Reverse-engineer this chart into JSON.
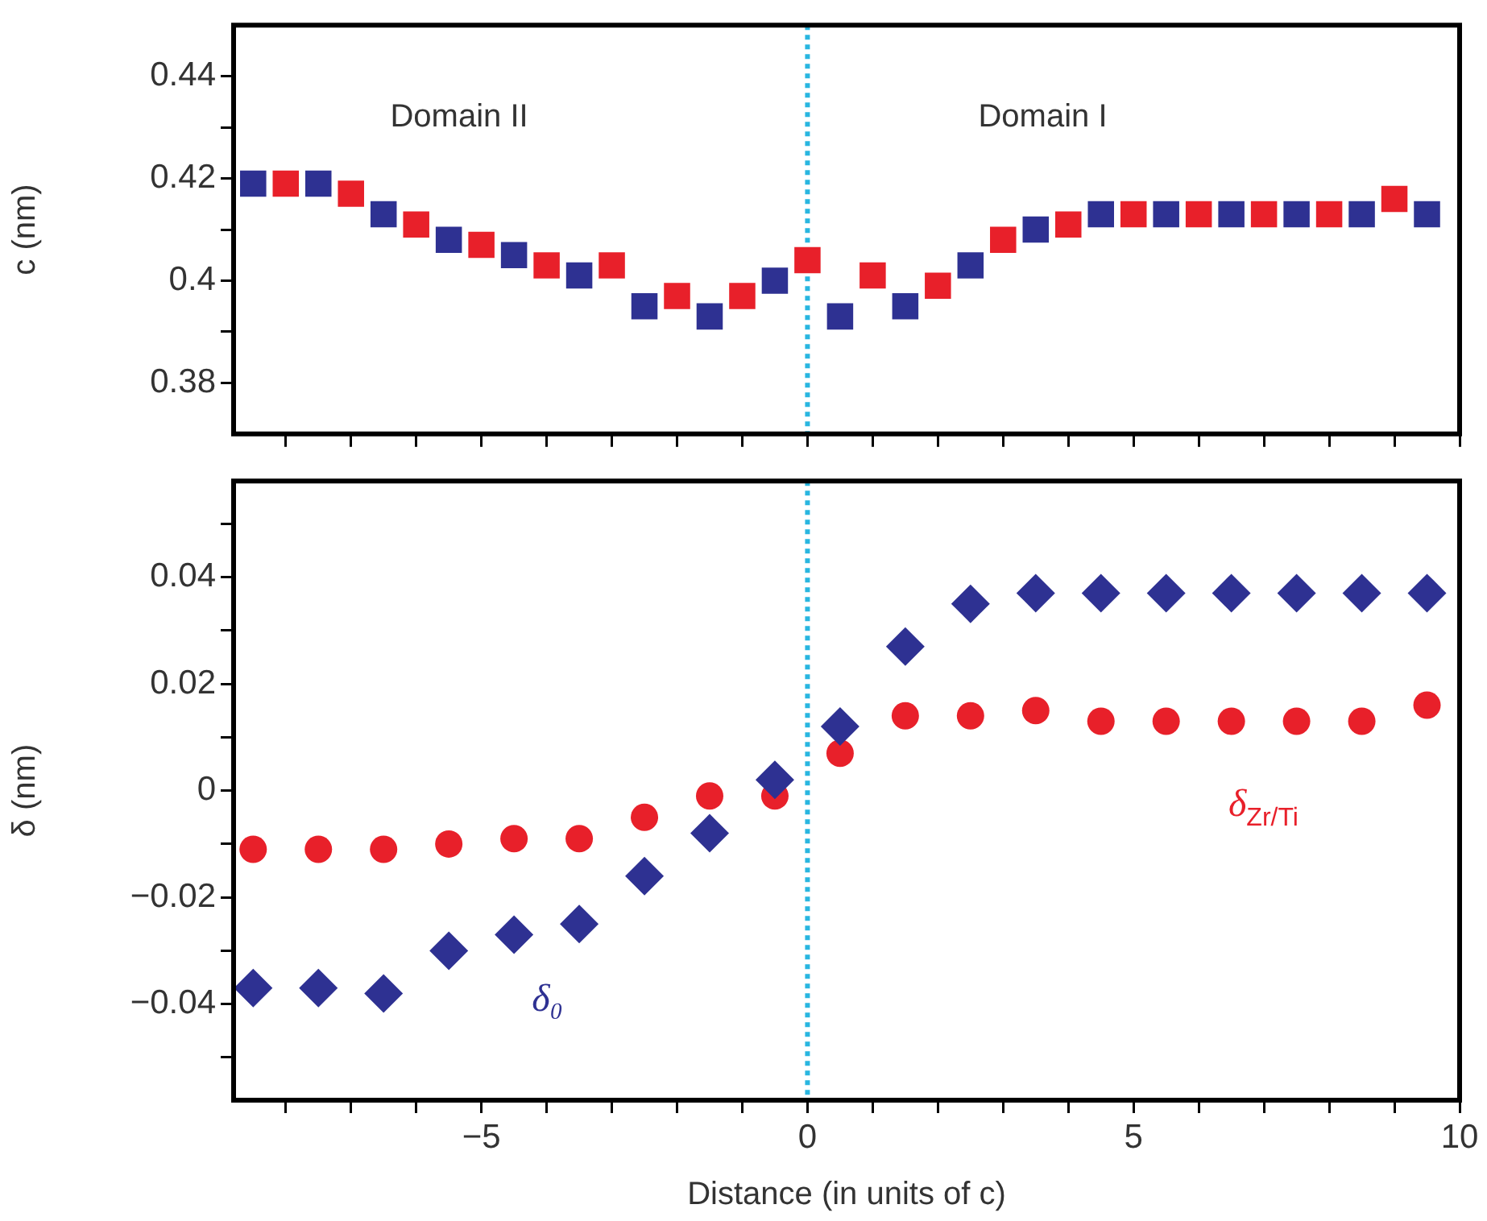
{
  "chart_data": [
    {
      "type": "scatter",
      "ylabel": "c (nm)",
      "annotations": [
        "Domain II",
        "Domain I"
      ],
      "xlim": [
        -8.8,
        10
      ],
      "xticks": [
        {
          "value": -8,
          "label": null
        },
        {
          "value": -7,
          "label": null
        },
        {
          "value": -6,
          "label": null
        },
        {
          "value": -5,
          "label": null
        },
        {
          "value": -4,
          "label": null
        },
        {
          "value": -3,
          "label": null
        },
        {
          "value": -2,
          "label": null
        },
        {
          "value": -1,
          "label": null
        },
        {
          "value": 0,
          "label": null
        },
        {
          "value": 1,
          "label": null
        },
        {
          "value": 2,
          "label": null
        },
        {
          "value": 3,
          "label": null
        },
        {
          "value": 4,
          "label": null
        },
        {
          "value": 5,
          "label": null
        },
        {
          "value": 6,
          "label": null
        },
        {
          "value": 7,
          "label": null
        },
        {
          "value": 8,
          "label": null
        },
        {
          "value": 9,
          "label": null
        },
        {
          "value": 10,
          "label": null
        }
      ],
      "ylim": [
        0.37,
        0.45
      ],
      "yticks": [
        0.38,
        {
          "value": 0.39,
          "label": null
        },
        0.4,
        {
          "value": 0.41,
          "label": null
        },
        0.42,
        {
          "value": 0.43,
          "label": null
        },
        0.44
      ],
      "tick_labels": "y",
      "grid": false,
      "legend": false,
      "ref_lines": [
        {
          "axis": "x",
          "value": 0,
          "color": "#29b6e0",
          "line_style": "dotted"
        }
      ],
      "series": [
        {
          "color": "#2e3192",
          "marker": "square",
          "x": [
            -8.5,
            -7.5,
            -6.5,
            -5.5,
            -4.5,
            -3.5,
            -2.5,
            -1.5,
            -0.5,
            0.5,
            1.5,
            2.5,
            3.5,
            4.5,
            5.5,
            6.5,
            7.5,
            8.5,
            9.5
          ],
          "values": [
            0.419,
            0.419,
            0.413,
            0.408,
            0.405,
            0.401,
            0.395,
            0.393,
            0.4,
            0.393,
            0.395,
            0.403,
            0.41,
            0.413,
            0.413,
            0.413,
            0.413,
            0.413,
            0.413
          ]
        },
        {
          "color": "#e8202a",
          "marker": "square",
          "x": [
            -8,
            -7,
            -6,
            -5,
            -4,
            -3,
            -2,
            -1,
            0,
            1,
            2,
            3,
            4,
            5,
            6,
            7,
            8,
            9
          ],
          "values": [
            0.419,
            0.417,
            0.411,
            0.407,
            0.403,
            0.403,
            0.397,
            0.397,
            0.404,
            0.401,
            0.399,
            0.408,
            0.411,
            0.413,
            0.413,
            0.413,
            0.413,
            0.416
          ]
        }
      ]
    },
    {
      "type": "scatter",
      "ylabel": "δ (nm)",
      "xlabel": "Distance (in units of c)",
      "xlim": [
        -8.8,
        10
      ],
      "xticks": [
        {
          "value": -8,
          "label": null
        },
        {
          "value": -7,
          "label": null
        },
        {
          "value": -6,
          "label": null
        },
        {
          "value": -5,
          "label": "−5"
        },
        {
          "value": -4,
          "label": null
        },
        {
          "value": -3,
          "label": null
        },
        {
          "value": -2,
          "label": null
        },
        {
          "value": -1,
          "label": null
        },
        0,
        {
          "value": 1,
          "label": null
        },
        {
          "value": 2,
          "label": null
        },
        {
          "value": 3,
          "label": null
        },
        {
          "value": 4,
          "label": null
        },
        5,
        {
          "value": 6,
          "label": null
        },
        {
          "value": 7,
          "label": null
        },
        {
          "value": 8,
          "label": null
        },
        {
          "value": 9,
          "label": null
        },
        10
      ],
      "ylim": [
        -0.058,
        0.058
      ],
      "yticks": [
        {
          "value": -0.05,
          "label": null
        },
        {
          "value": -0.04,
          "label": "−0.04"
        },
        {
          "value": -0.03,
          "label": null
        },
        {
          "value": -0.02,
          "label": "−0.02"
        },
        {
          "value": -0.01,
          "label": null
        },
        0,
        {
          "value": 0.01,
          "label": null
        },
        0.02,
        {
          "value": 0.03,
          "label": null
        },
        0.04,
        {
          "value": 0.05,
          "label": null
        }
      ],
      "grid": false,
      "legend": false,
      "ref_lines": [
        {
          "axis": "x",
          "value": 0,
          "color": "#29b6e0",
          "line_style": "dotted"
        }
      ],
      "x": [
        -8.5,
        -7.5,
        -6.5,
        -5.5,
        -4.5,
        -3.5,
        -2.5,
        -1.5,
        -0.5,
        0.5,
        1.5,
        2.5,
        3.5,
        4.5,
        5.5,
        6.5,
        7.5,
        8.5,
        9.5
      ],
      "series": [
        {
          "name": "δ₀",
          "color": "#2e3192",
          "marker": "diamond",
          "values": [
            -0.037,
            -0.037,
            -0.038,
            -0.03,
            -0.027,
            -0.025,
            -0.016,
            -0.008,
            0.002,
            0.012,
            0.027,
            0.035,
            0.037,
            0.037,
            0.037,
            0.037,
            0.037,
            0.037,
            0.037
          ]
        },
        {
          "name": "δ$_{Zr/Ti}$",
          "color": "#e8202a",
          "marker": "circle",
          "values": [
            -0.011,
            -0.011,
            -0.011,
            -0.01,
            -0.009,
            -0.009,
            -0.005,
            -0.001,
            -0.001,
            0.007,
            0.014,
            0.014,
            0.015,
            0.013,
            0.013,
            0.013,
            0.013,
            0.013,
            0.016
          ]
        }
      ]
    }
  ]
}
